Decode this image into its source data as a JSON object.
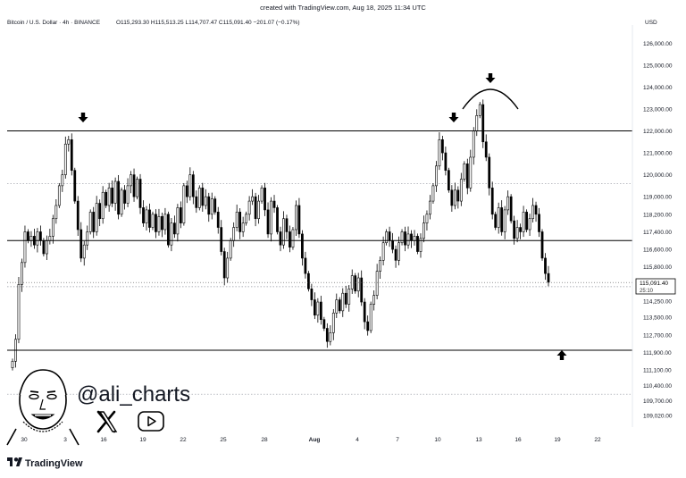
{
  "header": {
    "created_with": "created with TradingView.com, Aug 18, 2025 11:34 UTC",
    "symbol": "Bitcoin / U.S. Dollar · 4h · BINANCE",
    "ohlc": "O115,293.30  H115,513.25  L114,707.47  C115,091.40  −201.07 (−0.17%)"
  },
  "currency": "USD",
  "price_label": {
    "value": "115,091.40",
    "countdown": "25:10"
  },
  "watermark": {
    "handle": "@ali_charts",
    "x_icon": "x-logo-icon",
    "play_icon": "youtube-play-icon"
  },
  "footer": {
    "brand": "TradingView",
    "brand_icon": "tradingview-logo-icon"
  },
  "colors": {
    "up": "#ffffff",
    "down": "#000000",
    "line": "#000000",
    "text": "#131722",
    "grid": "#9598a1"
  },
  "chart_data": {
    "type": "candlestick",
    "title": "Bitcoin / U.S. Dollar · 4h · BINANCE",
    "ylabel": "USD",
    "ylim": [
      108500,
      126500
    ],
    "y_ticks": [
      126000,
      125000,
      124000,
      123000,
      122000,
      121000,
      120000,
      119000,
      118200,
      117400,
      116600,
      115800,
      114250,
      113500,
      112700,
      111900,
      111100,
      110400,
      109700,
      109020
    ],
    "y_tick_labels": [
      "126,000.00",
      "125,000.00",
      "124,000.00",
      "123,000.00",
      "122,000.00",
      "121,000.00",
      "120,000.00",
      "119,000.00",
      "118,200.00",
      "117,400.00",
      "116,600.00",
      "115,800.00",
      "114,250.00",
      "113,500.00",
      "112,700.00",
      "111,900.00",
      "111,100.00",
      "110,400.00",
      "109,700.00",
      "109,020.00"
    ],
    "x_tick_labels": [
      "30",
      "3",
      "16",
      "19",
      "22",
      "25",
      "28",
      "Aug",
      "4",
      "7",
      "10",
      "13",
      "16",
      "19",
      "22"
    ],
    "horizontal_lines": [
      122000,
      117000,
      112000
    ],
    "dotted_lines": [
      119600,
      114900,
      110000
    ],
    "last_price": 115091.4,
    "series_close": [
      111500,
      112500,
      115000,
      116000,
      117400,
      117000,
      117200,
      116800,
      117400,
      117000,
      116400,
      117000,
      117200,
      118000,
      118600,
      119500,
      120000,
      121400,
      121600,
      120200,
      118800,
      117500,
      116200,
      116800,
      117400,
      118300,
      117400,
      118700,
      118000,
      119200,
      118600,
      119400,
      118700,
      119700,
      118200,
      119300,
      118700,
      119500,
      120000,
      119000,
      119800,
      118500,
      117800,
      118400,
      117600,
      118200,
      117400,
      118100,
      117500,
      118200,
      116800,
      117800,
      117300,
      118500,
      117800,
      119500,
      119000,
      120000,
      119000,
      118500,
      119400,
      118600,
      119000,
      118200,
      118900,
      118300,
      117600,
      116500,
      115300,
      116200,
      117000,
      117600,
      118300,
      117400,
      117800,
      118200,
      118800,
      119000,
      118000,
      118800,
      119400,
      118400,
      117300,
      118800,
      118500,
      117400,
      116800,
      118000,
      117400,
      116700,
      117500,
      118600,
      117300,
      116200,
      115500,
      114800,
      114300,
      113600,
      114200,
      113400,
      113000,
      112400,
      112800,
      113700,
      114300,
      113800,
      114600,
      114100,
      114800,
      115400,
      114700,
      115300,
      114200,
      113300,
      112900,
      114100,
      114500,
      115600,
      116100,
      116900,
      117400,
      117000,
      116600,
      116100,
      116900,
      117400,
      116800,
      117300,
      117000,
      117200,
      116500,
      117100,
      117800,
      118200,
      118800,
      119500,
      120400,
      121600,
      121000,
      120200,
      119300,
      118600,
      119300,
      118800,
      119800,
      120500,
      119400,
      120800,
      122000,
      122700,
      123200,
      121500,
      120800,
      119400,
      118200,
      117600,
      118500,
      117400,
      118400,
      119000,
      117900,
      117100,
      117600,
      117400,
      118300,
      117500,
      118000,
      118600,
      118200,
      117400,
      116200,
      115500,
      115100
    ]
  }
}
